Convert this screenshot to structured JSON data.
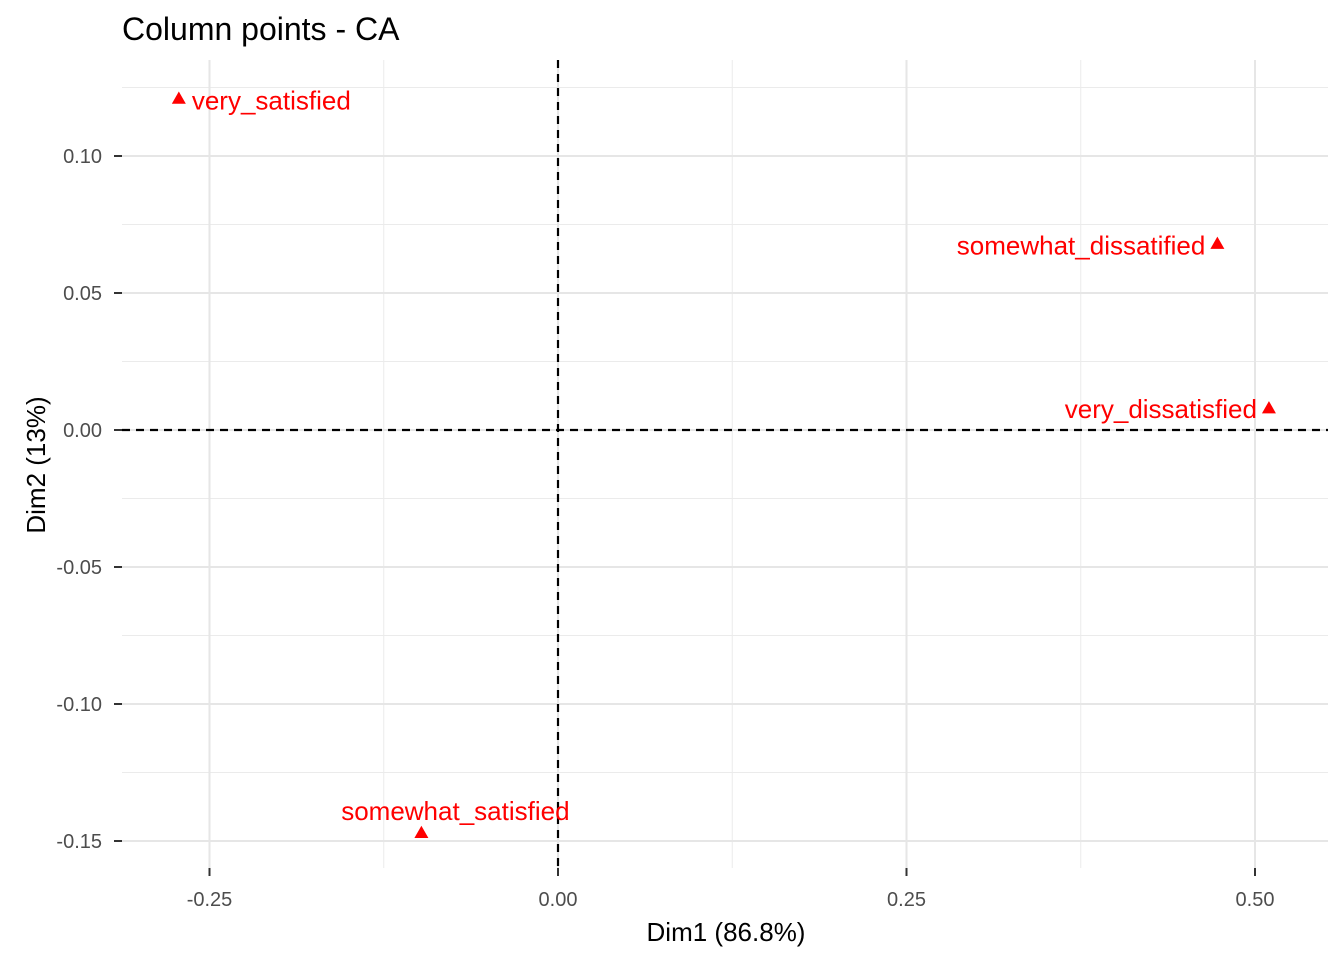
{
  "chart_data": {
    "type": "scatter",
    "title": "Column points - CA",
    "xlabel": "Dim1 (86.8%)",
    "ylabel": "Dim2 (13%)",
    "xlim": [
      -0.3,
      0.52
    ],
    "ylim": [
      -0.16,
      0.135
    ],
    "x_ticks": [
      -0.25,
      0.0,
      0.25,
      0.5
    ],
    "x_tick_labels": [
      "-0.25",
      "0.00",
      "0.25",
      "0.50"
    ],
    "y_ticks": [
      0.1,
      0.05,
      0.0,
      -0.05,
      -0.1,
      -0.15
    ],
    "y_tick_labels": [
      "0.10",
      "0.05",
      "0.00",
      "-0.05",
      "-0.10",
      "-0.15"
    ],
    "grid": true,
    "reference_lines": {
      "x": 0,
      "y": 0,
      "style": "dashed"
    },
    "marker": "triangle",
    "color": "#ff0000",
    "points": [
      {
        "label": "very_satisfied",
        "x": -0.272,
        "y": 0.121
      },
      {
        "label": "somewhat_dissatified",
        "x": 0.473,
        "y": 0.068
      },
      {
        "label": "very_dissatisfied",
        "x": 0.51,
        "y": 0.008
      },
      {
        "label": "somewhat_satisfied",
        "x": -0.098,
        "y": -0.147
      }
    ]
  }
}
